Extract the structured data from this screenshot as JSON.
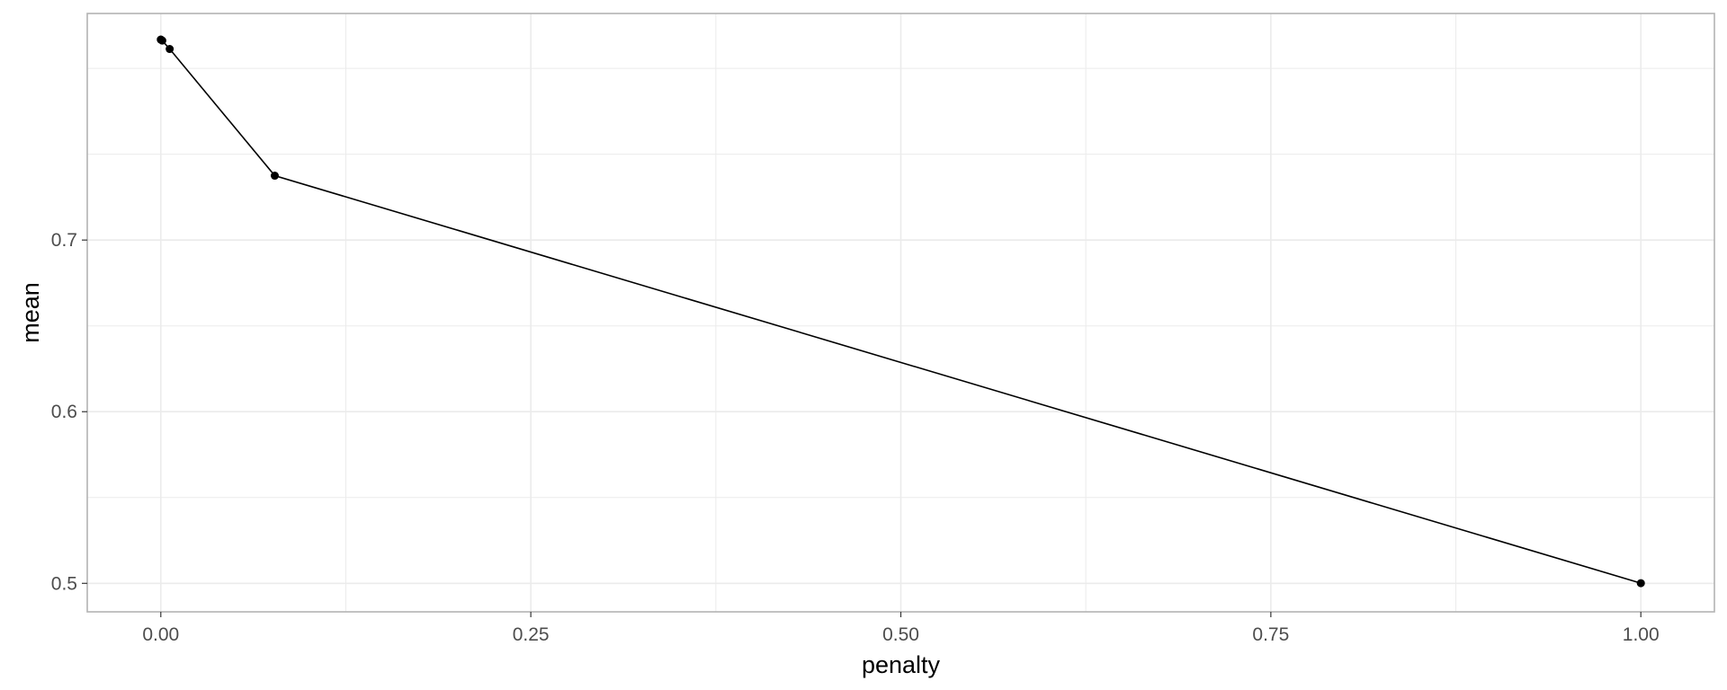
{
  "chart_data": {
    "type": "line",
    "title": "",
    "xlabel": "penalty",
    "ylabel": "mean",
    "xlim": [
      -0.0497,
      1.0497
    ],
    "ylim": [
      0.4834,
      0.832
    ],
    "x_ticks": [
      0.0,
      0.25,
      0.5,
      0.75,
      1.0
    ],
    "x_tick_labels": [
      "0.00",
      "0.25",
      "0.50",
      "0.75",
      "1.00"
    ],
    "x_minor_ticks": [
      0.125,
      0.375,
      0.625,
      0.875
    ],
    "y_ticks": [
      0.5,
      0.6,
      0.7
    ],
    "y_tick_labels": [
      "0.5",
      "0.6",
      "0.7"
    ],
    "y_minor_ticks": [
      0.55,
      0.65,
      0.75,
      0.8
    ],
    "grid": true,
    "legend": "none",
    "series": [
      {
        "x": [
          0.0,
          0.0001,
          0.001,
          0.006,
          0.077,
          1.0
        ],
        "y": [
          0.8168,
          0.8167,
          0.8162,
          0.8113,
          0.7375,
          0.5001
        ]
      }
    ],
    "colors": {
      "line": "#000000",
      "point": "#000000",
      "grid": "#ebebeb",
      "panel_border": "#b3b3b3",
      "background": "#ffffff"
    }
  }
}
